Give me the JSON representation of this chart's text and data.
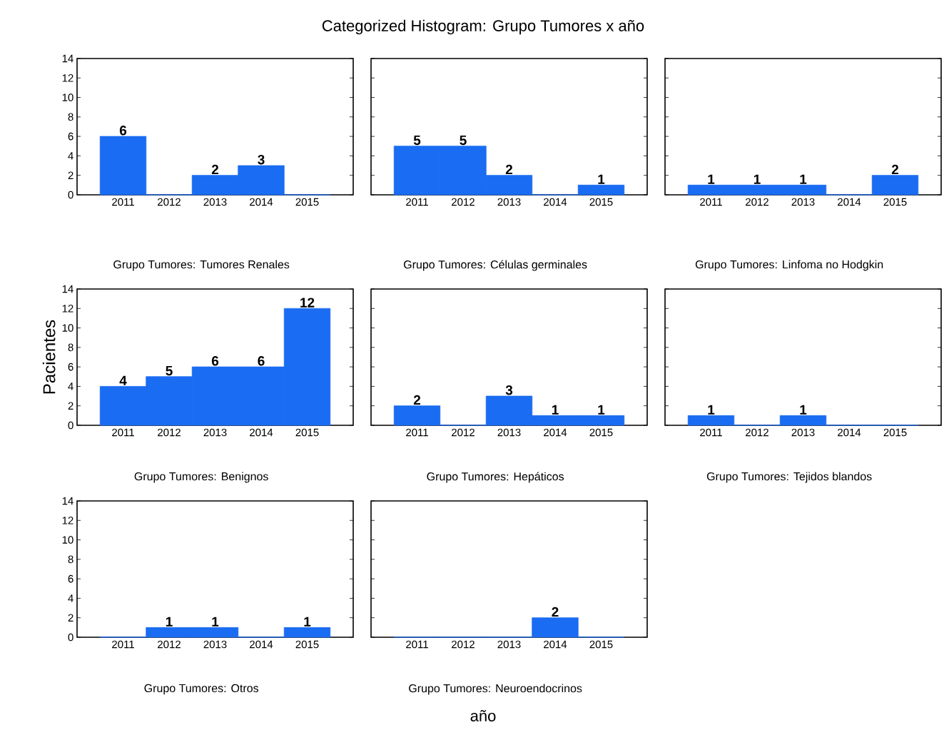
{
  "chart_data": [
    {
      "type": "bar",
      "subtitle": "Grupo Tumores: Tumores Renales",
      "categories": [
        "2011",
        "2012",
        "2013",
        "2014",
        "2015"
      ],
      "values": [
        6,
        0,
        2,
        3,
        0
      ],
      "value_labels": [
        "6",
        null,
        "2",
        "3",
        null
      ],
      "color": "#1a6cf2",
      "ylim": [
        0,
        14
      ],
      "yticks": [
        0,
        2,
        4,
        6,
        8,
        10,
        12,
        14
      ]
    },
    {
      "type": "bar",
      "title": "Categorized Histogram: Grupo Tumores x año",
      "subtitle": "Grupo Tumores: Células germinales",
      "categories": [
        "2011",
        "2012",
        "2013",
        "2014",
        "2015"
      ],
      "values": [
        5,
        5,
        2,
        0,
        1
      ],
      "value_labels": [
        "5",
        "5",
        "2",
        null,
        "1"
      ],
      "color": "#1a6cf2",
      "ylim": [
        0,
        14
      ],
      "yticks": [
        0,
        2,
        4,
        6,
        8,
        10,
        12,
        14
      ],
      "tick_labels": "x"
    },
    {
      "type": "bar",
      "subtitle": "Grupo Tumores: Linfoma no Hodgkin",
      "categories": [
        "2011",
        "2012",
        "2013",
        "2014",
        "2015"
      ],
      "values": [
        1,
        1,
        1,
        0,
        2
      ],
      "value_labels": [
        "1",
        "1",
        "1",
        null,
        "2"
      ],
      "color": "#1a6cf2",
      "ylim": [
        0,
        14
      ],
      "yticks": [
        0,
        2,
        4,
        6,
        8,
        10,
        12,
        14
      ],
      "tick_labels": "x"
    },
    {
      "type": "bar",
      "subtitle": "Grupo Tumores: Benignos",
      "ylabel": "Pacientes",
      "categories": [
        "2011",
        "2012",
        "2013",
        "2014",
        "2015"
      ],
      "values": [
        4,
        5,
        6,
        6,
        12
      ],
      "value_labels": [
        "4",
        "5",
        "6",
        "6",
        "12"
      ],
      "color": "#1a6cf2",
      "ylim": [
        0,
        14
      ],
      "yticks": [
        0,
        2,
        4,
        6,
        8,
        10,
        12,
        14
      ]
    },
    {
      "type": "bar",
      "subtitle": "Grupo Tumores: Hepáticos",
      "categories": [
        "2011",
        "2012",
        "2013",
        "2014",
        "2015"
      ],
      "values": [
        2,
        0,
        3,
        1,
        1
      ],
      "value_labels": [
        "2",
        null,
        "3",
        "1",
        "1"
      ],
      "color": "#1a6cf2",
      "ylim": [
        0,
        14
      ],
      "yticks": [
        0,
        2,
        4,
        6,
        8,
        10,
        12,
        14
      ],
      "tick_labels": "x"
    },
    {
      "type": "bar",
      "subtitle": "Grupo Tumores: Tejidos blandos",
      "categories": [
        "2011",
        "2012",
        "2013",
        "2014",
        "2015"
      ],
      "values": [
        1,
        0,
        1,
        0,
        0
      ],
      "value_labels": [
        "1",
        null,
        "1",
        null,
        null
      ],
      "color": "#1a6cf2",
      "ylim": [
        0,
        14
      ],
      "yticks": [
        0,
        2,
        4,
        6,
        8,
        10,
        12,
        14
      ],
      "tick_labels": "x"
    },
    {
      "type": "bar",
      "subtitle": "Grupo Tumores: Otros",
      "categories": [
        "2011",
        "2012",
        "2013",
        "2014",
        "2015"
      ],
      "values": [
        0,
        1,
        1,
        0,
        1
      ],
      "value_labels": [
        null,
        "1",
        "1",
        null,
        "1"
      ],
      "color": "#1a6cf2",
      "ylim": [
        0,
        14
      ],
      "yticks": [
        0,
        2,
        4,
        6,
        8,
        10,
        12,
        14
      ]
    },
    {
      "type": "bar",
      "subtitle": "Grupo Tumores: Neuroendocrinos",
      "xlabel": "año",
      "categories": [
        "2011",
        "2012",
        "2013",
        "2014",
        "2015"
      ],
      "values": [
        0,
        0,
        0,
        2,
        0
      ],
      "value_labels": [
        null,
        null,
        null,
        "2",
        null
      ],
      "color": "#1a6cf2",
      "ylim": [
        0,
        14
      ],
      "yticks": [
        0,
        2,
        4,
        6,
        8,
        10,
        12,
        14
      ],
      "tick_labels": "x"
    }
  ]
}
